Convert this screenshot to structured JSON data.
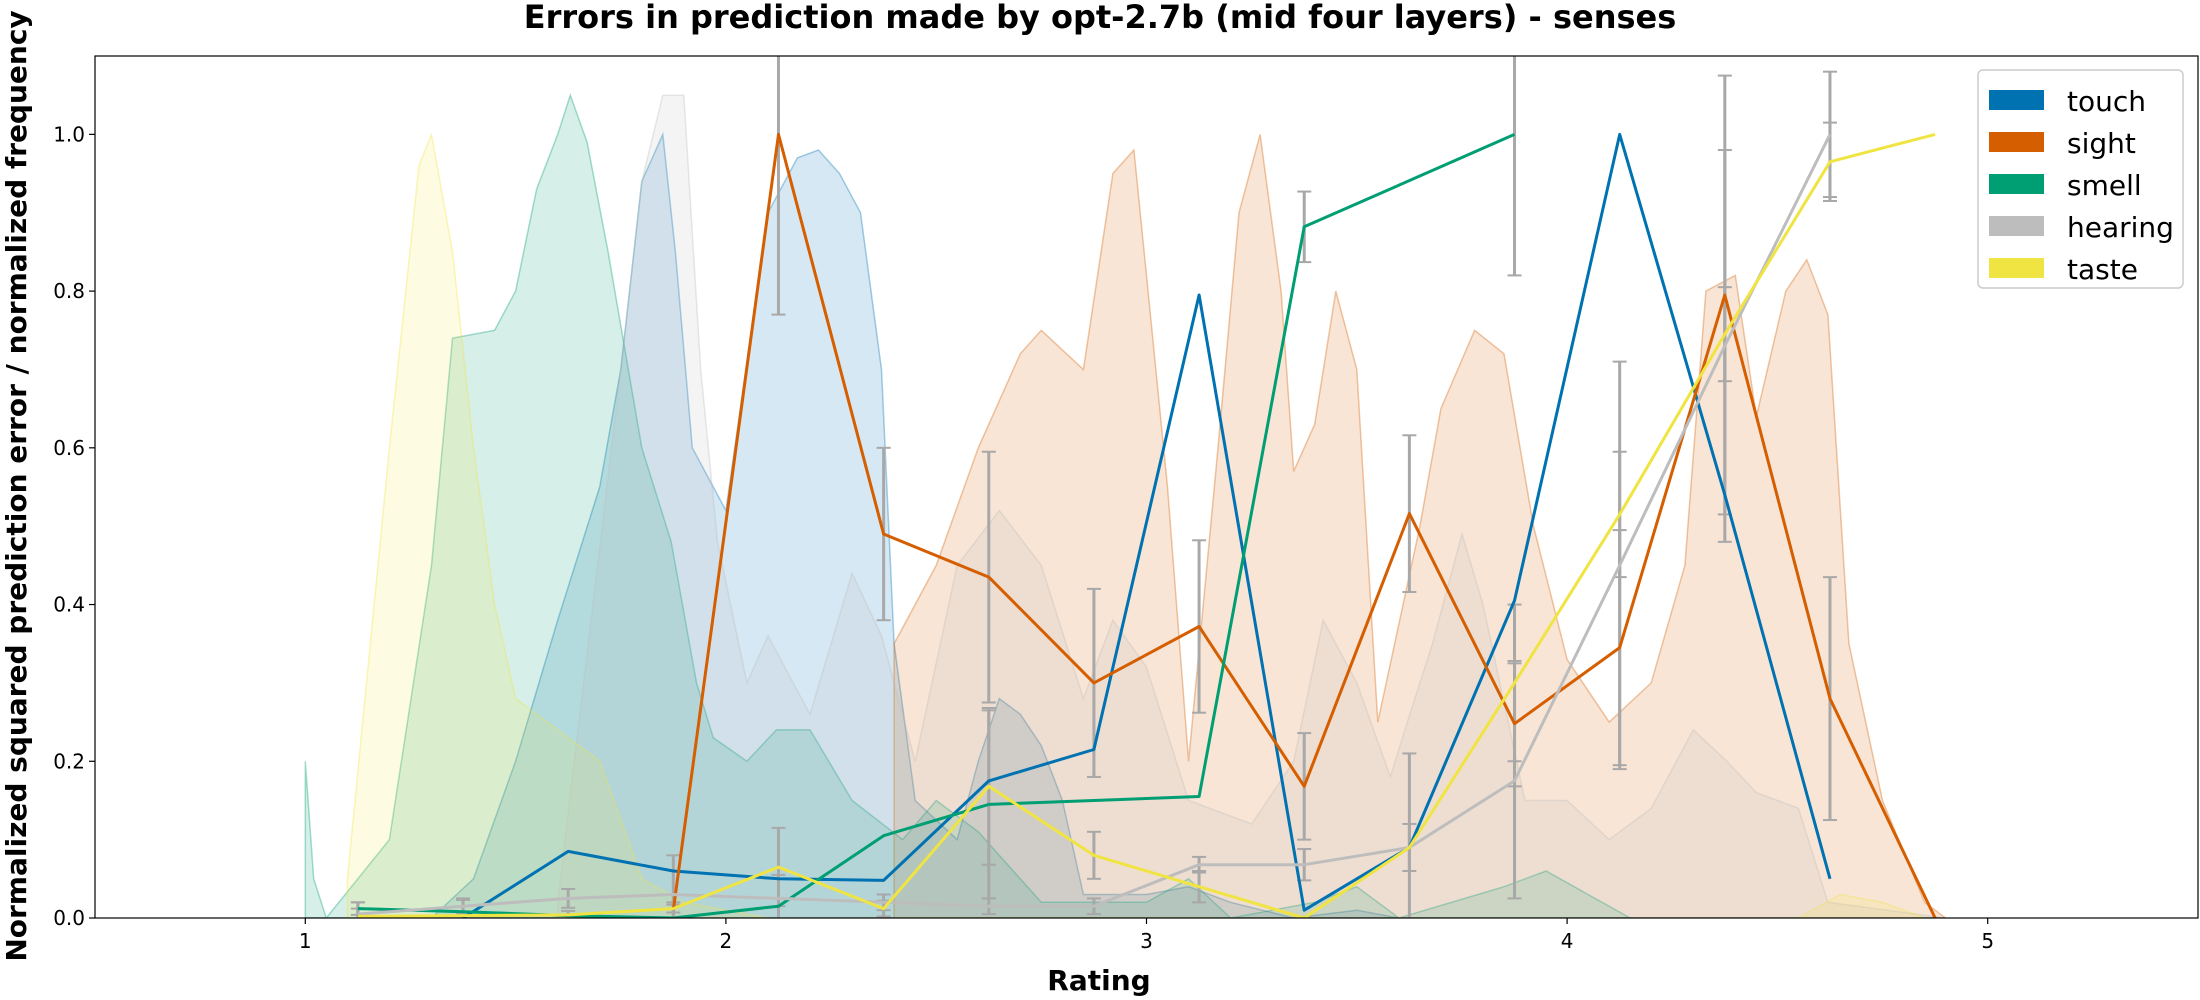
{
  "chart_data": {
    "type": "line",
    "title": "Errors in prediction made by opt-2.7b (mid four layers) - senses",
    "xlabel": "Rating",
    "ylabel": "Normalized squared prediction error / normalized frequency",
    "xlim": [
      0.5,
      5.5
    ],
    "ylim": [
      0,
      1.1
    ],
    "xticks": [
      1,
      2,
      3,
      4,
      5
    ],
    "yticks": [
      "0.0",
      "0.2",
      "0.4",
      "0.6",
      "0.8",
      "1.0"
    ],
    "legend_position": "top-right",
    "grid": false,
    "series": [
      {
        "name": "touch",
        "color": "#0072b2",
        "points": [
          [
            1.375,
            0.0
          ],
          [
            1.625,
            0.085
          ],
          [
            1.875,
            0.06
          ],
          [
            2.125,
            0.05
          ],
          [
            2.375,
            0.048
          ],
          [
            2.625,
            0.175
          ],
          [
            2.875,
            0.215
          ],
          [
            3.125,
            0.795
          ],
          [
            3.375,
            0.01
          ],
          [
            3.625,
            0.09
          ],
          [
            3.875,
            0.405
          ],
          [
            4.125,
            1.0
          ],
          [
            4.375,
            0.54
          ],
          [
            4.625,
            0.05
          ]
        ],
        "errors": [
          0,
          0,
          0,
          0,
          0,
          0,
          0,
          0,
          0,
          0,
          0,
          0,
          0,
          0
        ],
        "density": [
          [
            1.3,
            0.0
          ],
          [
            1.4,
            0.05
          ],
          [
            1.5,
            0.2
          ],
          [
            1.6,
            0.38
          ],
          [
            1.7,
            0.55
          ],
          [
            1.75,
            0.7
          ],
          [
            1.8,
            0.94
          ],
          [
            1.85,
            1.0
          ],
          [
            1.88,
            0.85
          ],
          [
            1.92,
            0.6
          ],
          [
            2.0,
            0.52
          ],
          [
            2.1,
            0.9
          ],
          [
            2.17,
            0.97
          ],
          [
            2.22,
            0.98
          ],
          [
            2.27,
            0.95
          ],
          [
            2.32,
            0.9
          ],
          [
            2.37,
            0.7
          ],
          [
            2.4,
            0.35
          ],
          [
            2.45,
            0.15
          ],
          [
            2.55,
            0.1
          ],
          [
            2.6,
            0.2
          ],
          [
            2.65,
            0.28
          ],
          [
            2.7,
            0.26
          ],
          [
            2.75,
            0.22
          ],
          [
            2.8,
            0.15
          ],
          [
            2.85,
            0.03
          ],
          [
            3.0,
            0.03
          ],
          [
            3.1,
            0.04
          ],
          [
            3.2,
            0.02
          ],
          [
            3.35,
            0.0
          ],
          [
            3.5,
            0.01
          ],
          [
            3.6,
            0.0
          ],
          [
            4.55,
            0.0
          ]
        ]
      },
      {
        "name": "sight",
        "color": "#d55e00",
        "points": [
          [
            1.875,
            0.01
          ],
          [
            2.125,
            1.0
          ],
          [
            2.375,
            0.49
          ],
          [
            2.625,
            0.435
          ],
          [
            2.875,
            0.3
          ],
          [
            3.125,
            0.372
          ],
          [
            3.375,
            0.168
          ],
          [
            3.625,
            0.516
          ],
          [
            3.875,
            0.248
          ],
          [
            4.125,
            0.345
          ],
          [
            4.375,
            0.795
          ],
          [
            4.625,
            0.28
          ],
          [
            4.875,
            0.0
          ]
        ],
        "errors": [
          0.01,
          0.23,
          0.11,
          0.16,
          0.12,
          0.11,
          0.068,
          0.1,
          0.08,
          0.15,
          0.28,
          0.155,
          0
        ],
        "density": [
          [
            2.4,
            0.35
          ],
          [
            2.5,
            0.45
          ],
          [
            2.6,
            0.6
          ],
          [
            2.7,
            0.72
          ],
          [
            2.75,
            0.75
          ],
          [
            2.85,
            0.7
          ],
          [
            2.92,
            0.95
          ],
          [
            2.97,
            0.98
          ],
          [
            3.0,
            0.82
          ],
          [
            3.05,
            0.55
          ],
          [
            3.1,
            0.2
          ],
          [
            3.17,
            0.6
          ],
          [
            3.22,
            0.9
          ],
          [
            3.27,
            1.0
          ],
          [
            3.32,
            0.8
          ],
          [
            3.35,
            0.57
          ],
          [
            3.4,
            0.63
          ],
          [
            3.45,
            0.8
          ],
          [
            3.5,
            0.7
          ],
          [
            3.55,
            0.25
          ],
          [
            3.65,
            0.5
          ],
          [
            3.7,
            0.65
          ],
          [
            3.78,
            0.75
          ],
          [
            3.85,
            0.72
          ],
          [
            3.92,
            0.5
          ],
          [
            4.0,
            0.33
          ],
          [
            4.1,
            0.25
          ],
          [
            4.2,
            0.3
          ],
          [
            4.28,
            0.45
          ],
          [
            4.33,
            0.8
          ],
          [
            4.4,
            0.82
          ],
          [
            4.45,
            0.64
          ],
          [
            4.52,
            0.8
          ],
          [
            4.57,
            0.84
          ],
          [
            4.62,
            0.77
          ],
          [
            4.67,
            0.35
          ],
          [
            4.75,
            0.15
          ],
          [
            4.85,
            0.02
          ],
          [
            4.9,
            0.0
          ]
        ]
      },
      {
        "name": "smell",
        "color": "#009e73",
        "points": [
          [
            1.125,
            0.012
          ],
          [
            1.375,
            0.008
          ],
          [
            1.625,
            0.003
          ],
          [
            1.875,
            0.0
          ],
          [
            2.125,
            0.015
          ],
          [
            2.375,
            0.105
          ],
          [
            2.625,
            0.145
          ],
          [
            2.875,
            0.15
          ],
          [
            3.125,
            0.155
          ],
          [
            3.375,
            0.882
          ],
          [
            3.875,
            1.0
          ]
        ],
        "errors": [
          0.008,
          0.015,
          0,
          0,
          0,
          0,
          0.12,
          0,
          0,
          0.045,
          0.18
        ],
        "density": [
          [
            1.0,
            0.2
          ],
          [
            1.02,
            0.05
          ],
          [
            1.05,
            0.0
          ],
          [
            1.2,
            0.1
          ],
          [
            1.3,
            0.45
          ],
          [
            1.35,
            0.74
          ],
          [
            1.45,
            0.75
          ],
          [
            1.5,
            0.8
          ],
          [
            1.55,
            0.93
          ],
          [
            1.6,
            1.0
          ],
          [
            1.63,
            1.05
          ],
          [
            1.67,
            0.99
          ],
          [
            1.72,
            0.85
          ],
          [
            1.8,
            0.6
          ],
          [
            1.87,
            0.48
          ],
          [
            1.93,
            0.3
          ],
          [
            1.97,
            0.23
          ],
          [
            2.05,
            0.2
          ],
          [
            2.12,
            0.24
          ],
          [
            2.2,
            0.24
          ],
          [
            2.3,
            0.15
          ],
          [
            2.42,
            0.1
          ],
          [
            2.5,
            0.15
          ],
          [
            2.6,
            0.11
          ],
          [
            2.75,
            0.02
          ],
          [
            3.0,
            0.02
          ],
          [
            3.1,
            0.05
          ],
          [
            3.2,
            0.0
          ],
          [
            3.4,
            0.02
          ],
          [
            3.5,
            0.04
          ],
          [
            3.6,
            0.0
          ],
          [
            3.85,
            0.04
          ],
          [
            3.95,
            0.06
          ],
          [
            4.05,
            0.03
          ],
          [
            4.15,
            0.0
          ],
          [
            4.9,
            0.0
          ]
        ]
      },
      {
        "name": "hearing",
        "color": "#bdbdbd",
        "points": [
          [
            1.125,
            0.005
          ],
          [
            1.375,
            0.015
          ],
          [
            1.625,
            0.025
          ],
          [
            1.875,
            0.03
          ],
          [
            2.125,
            0.025
          ],
          [
            2.375,
            0.02
          ],
          [
            2.625,
            0.015
          ],
          [
            2.875,
            0.015
          ],
          [
            3.125,
            0.068
          ],
          [
            3.375,
            0.068
          ],
          [
            3.625,
            0.09
          ],
          [
            3.875,
            0.175
          ],
          [
            4.125,
            0.45
          ],
          [
            4.375,
            0.73
          ],
          [
            4.625,
            1.0
          ]
        ],
        "errors": [
          0.015,
          0.01,
          0.012,
          0.05,
          0.03,
          0.01,
          0.01,
          0.01,
          0.01,
          0.02,
          0.03,
          0.15,
          0.26,
          0.25,
          0.08
        ],
        "density": [
          [
            1.6,
            0.02
          ],
          [
            1.75,
            0.7
          ],
          [
            1.8,
            0.94
          ],
          [
            1.85,
            1.05
          ],
          [
            1.9,
            1.05
          ],
          [
            1.94,
            0.7
          ],
          [
            1.98,
            0.48
          ],
          [
            2.05,
            0.3
          ],
          [
            2.1,
            0.36
          ],
          [
            2.2,
            0.26
          ],
          [
            2.3,
            0.44
          ],
          [
            2.37,
            0.36
          ],
          [
            2.45,
            0.2
          ],
          [
            2.55,
            0.45
          ],
          [
            2.65,
            0.52
          ],
          [
            2.75,
            0.45
          ],
          [
            2.85,
            0.28
          ],
          [
            2.92,
            0.38
          ],
          [
            3.0,
            0.32
          ],
          [
            3.1,
            0.15
          ],
          [
            3.25,
            0.12
          ],
          [
            3.35,
            0.2
          ],
          [
            3.42,
            0.38
          ],
          [
            3.5,
            0.3
          ],
          [
            3.58,
            0.18
          ],
          [
            3.62,
            0.25
          ],
          [
            3.68,
            0.35
          ],
          [
            3.75,
            0.49
          ],
          [
            3.8,
            0.4
          ],
          [
            3.9,
            0.15
          ],
          [
            4.0,
            0.15
          ],
          [
            4.1,
            0.1
          ],
          [
            4.2,
            0.14
          ],
          [
            4.3,
            0.24
          ],
          [
            4.38,
            0.2
          ],
          [
            4.45,
            0.16
          ],
          [
            4.55,
            0.14
          ],
          [
            4.62,
            0.02
          ],
          [
            4.9,
            0.0
          ]
        ]
      },
      {
        "name": "taste",
        "color": "#f0e442",
        "points": [
          [
            1.125,
            0.002
          ],
          [
            1.375,
            0.003
          ],
          [
            1.625,
            0.004
          ],
          [
            1.875,
            0.012
          ],
          [
            2.125,
            0.065
          ],
          [
            2.375,
            0.012
          ],
          [
            2.625,
            0.168
          ],
          [
            2.875,
            0.08
          ],
          [
            3.125,
            0.04
          ],
          [
            3.375,
            0.0
          ],
          [
            3.625,
            0.09
          ],
          [
            3.875,
            0.3
          ],
          [
            4.125,
            0.515
          ],
          [
            4.375,
            0.745
          ],
          [
            4.625,
            0.965
          ],
          [
            4.875,
            1.0
          ]
        ],
        "errors": [
          0.01,
          0.005,
          0.005,
          0.005,
          0.05,
          0.01,
          0.1,
          0.03,
          0.02,
          0.0,
          0.12,
          0.1,
          0.08,
          0.06,
          0.05,
          0.0
        ],
        "density": [
          [
            1.1,
            0.05
          ],
          [
            1.2,
            0.6
          ],
          [
            1.27,
            0.96
          ],
          [
            1.3,
            1.0
          ],
          [
            1.35,
            0.85
          ],
          [
            1.4,
            0.6
          ],
          [
            1.45,
            0.4
          ],
          [
            1.5,
            0.28
          ],
          [
            1.6,
            0.24
          ],
          [
            1.7,
            0.2
          ],
          [
            1.8,
            0.05
          ],
          [
            1.9,
            0.02
          ],
          [
            2.1,
            0.0
          ],
          [
            4.55,
            0.0
          ],
          [
            4.65,
            0.03
          ],
          [
            4.75,
            0.02
          ],
          [
            4.85,
            0.0
          ]
        ]
      }
    ]
  }
}
